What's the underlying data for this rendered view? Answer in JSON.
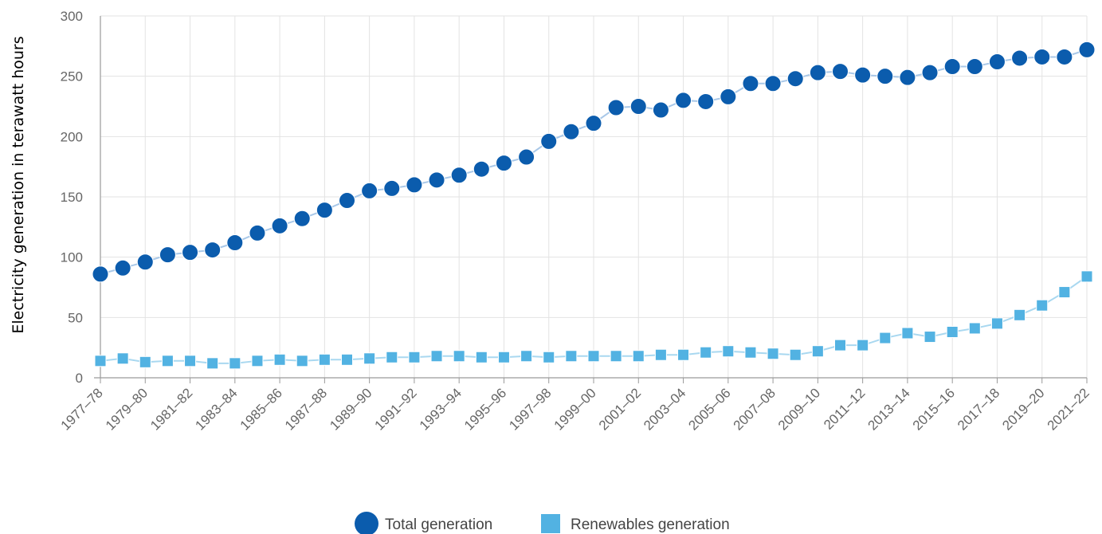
{
  "chart_data": {
    "type": "line",
    "title": "",
    "xlabel": "",
    "ylabel": "Electricity generation in terawatt hours",
    "ylim": [
      0,
      300
    ],
    "yticks": [
      0,
      50,
      100,
      150,
      200,
      250,
      300
    ],
    "grid": true,
    "legend_position": "bottom-center",
    "xtick_labels": [
      "1977–78",
      "1979–80",
      "1981–82",
      "1983–84",
      "1985–86",
      "1987–88",
      "1989–90",
      "1991–92",
      "1993–94",
      "1995–96",
      "1997–98",
      "1999–00",
      "2001–02",
      "2003–04",
      "2005–06",
      "2007–08",
      "2009–10",
      "2011–12",
      "2013–14",
      "2015–16",
      "2017–18",
      "2019–20",
      "2021–22"
    ],
    "categories": [
      "1977–78",
      "1978–79",
      "1979–80",
      "1980–81",
      "1981–82",
      "1982–83",
      "1983–84",
      "1984–85",
      "1985–86",
      "1986–87",
      "1987–88",
      "1988–89",
      "1989–90",
      "1990–91",
      "1991–92",
      "1992–93",
      "1993–94",
      "1994–95",
      "1995–96",
      "1996–97",
      "1997–98",
      "1998–99",
      "1999–00",
      "2000–01",
      "2001–02",
      "2002–03",
      "2003–04",
      "2004–05",
      "2005–06",
      "2006–07",
      "2007–08",
      "2008–09",
      "2009–10",
      "2010–11",
      "2011–12",
      "2012–13",
      "2013–14",
      "2014–15",
      "2015–16",
      "2016–17",
      "2017–18",
      "2018–19",
      "2019–20",
      "2020–21",
      "2021–22"
    ],
    "series": [
      {
        "name": "Total generation",
        "color": "#0b5cad",
        "line_color": "#a9c8e8",
        "marker": "circle",
        "values": [
          86,
          91,
          96,
          102,
          104,
          106,
          112,
          120,
          126,
          132,
          139,
          147,
          155,
          157,
          160,
          164,
          168,
          173,
          178,
          183,
          196,
          204,
          211,
          224,
          225,
          222,
          230,
          229,
          233,
          244,
          244,
          248,
          253,
          254,
          251,
          250,
          249,
          253,
          258,
          258,
          262,
          265,
          266,
          266,
          272
        ]
      },
      {
        "name": "Renewables generation",
        "color": "#52b2e2",
        "line_color": "#a9d8f0",
        "marker": "square",
        "values": [
          14,
          16,
          13,
          14,
          14,
          12,
          12,
          14,
          15,
          14,
          15,
          15,
          16,
          17,
          17,
          18,
          18,
          17,
          17,
          18,
          17,
          18,
          18,
          18,
          18,
          19,
          19,
          21,
          22,
          21,
          20,
          19,
          22,
          27,
          27,
          33,
          37,
          34,
          38,
          41,
          45,
          52,
          60,
          71,
          84
        ]
      }
    ]
  }
}
